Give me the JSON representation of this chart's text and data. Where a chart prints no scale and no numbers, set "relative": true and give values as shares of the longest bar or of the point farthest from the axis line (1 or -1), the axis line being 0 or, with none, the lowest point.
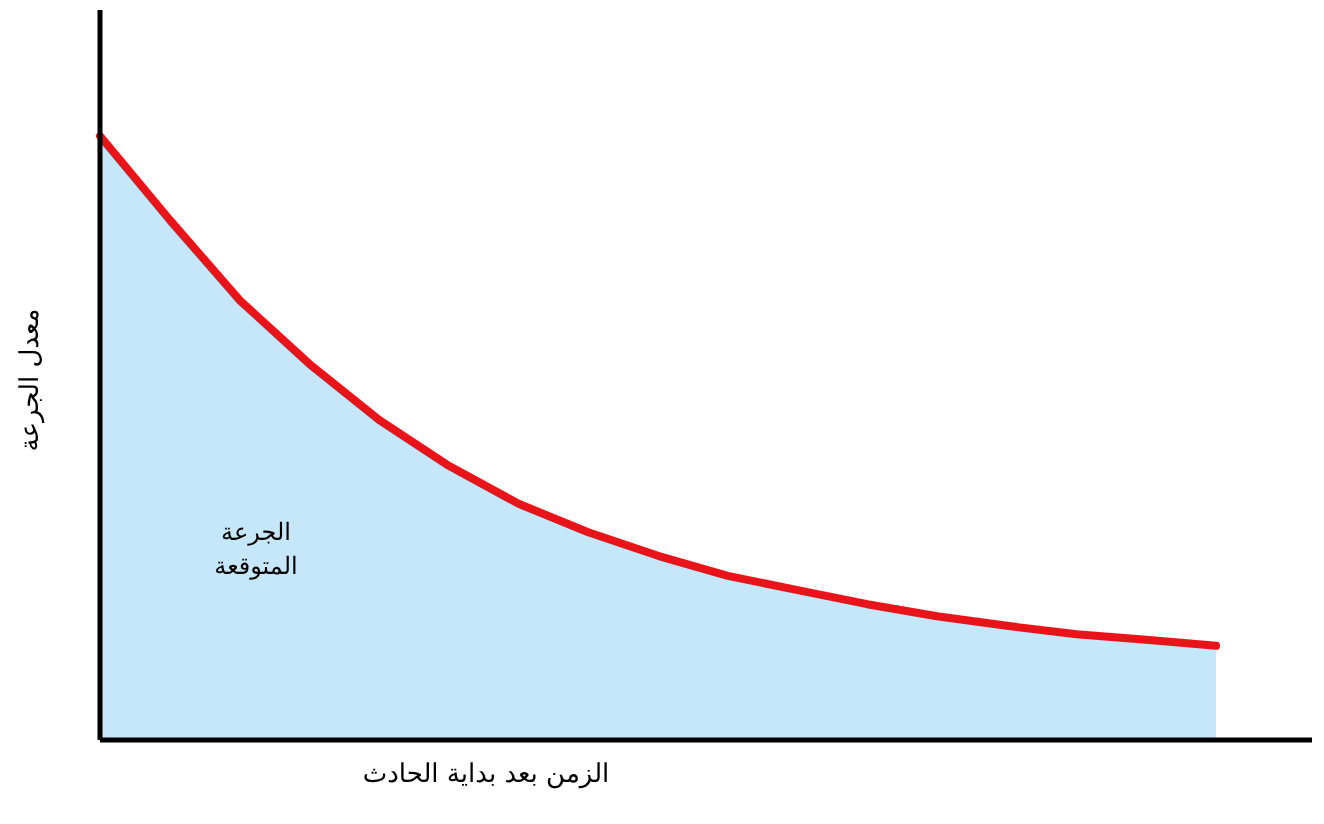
{
  "chart_data": {
    "type": "area",
    "relative": true,
    "xlabel": "الزمن بعد بداية الحادث",
    "ylabel": "معدل الجرعة",
    "annotations": [
      "الجرعة المتوقعة"
    ],
    "marker": "none",
    "categories": [
      null,
      null,
      null,
      null,
      null,
      null,
      null,
      null,
      null,
      null,
      null,
      null,
      null,
      null,
      null,
      null,
      null
    ],
    "series": [
      {
        "color": "#c6e6fa",
        "values": [
          1,
          0.861,
          0.728,
          0.623,
          0.53,
          0.454,
          0.391,
          0.344,
          0.305,
          0.272,
          0.248,
          0.225,
          0.205,
          0.189,
          0.175,
          0.166,
          0.156
        ]
      },
      {
        "type": "line",
        "color": "#e8141a",
        "values": [
          1,
          0.861,
          0.728,
          0.623,
          0.53,
          0.454,
          0.391,
          0.344,
          0.305,
          0.272,
          0.248,
          0.225,
          0.205,
          0.189,
          0.175,
          0.166,
          0.156
        ]
      }
    ]
  }
}
